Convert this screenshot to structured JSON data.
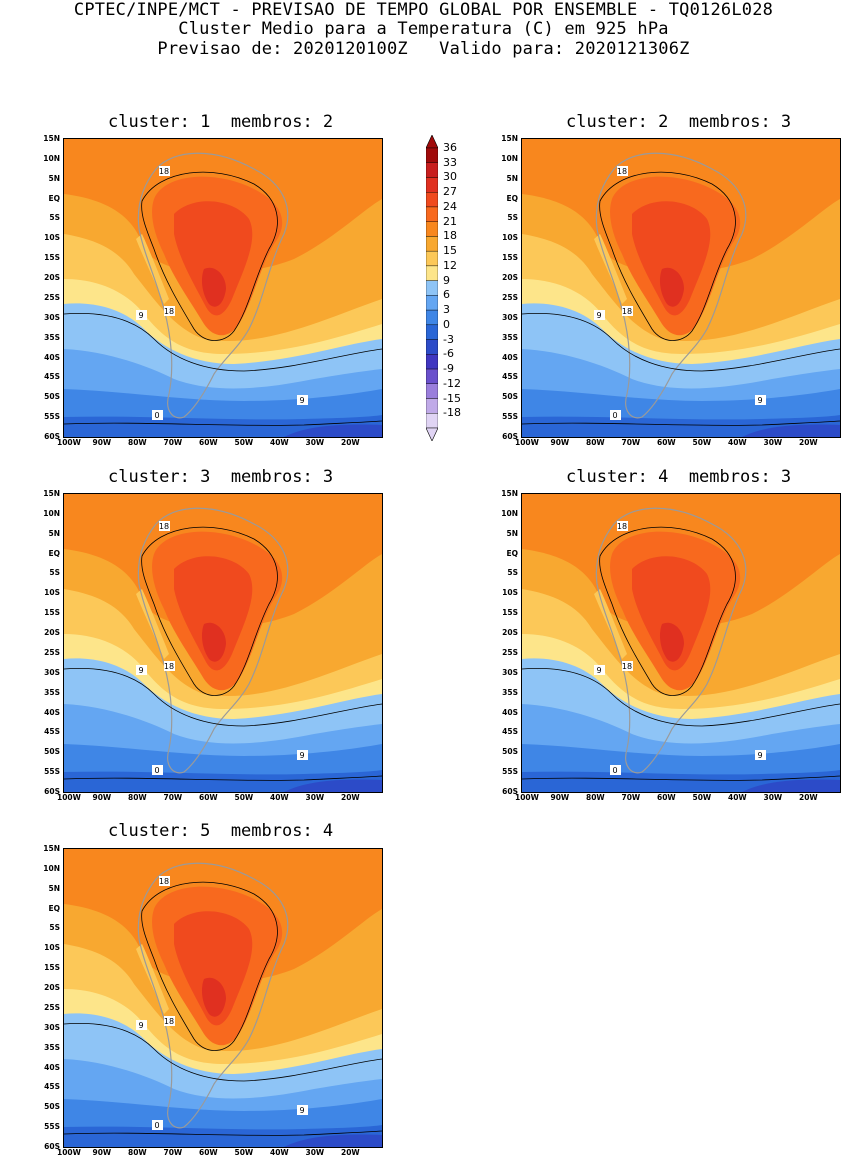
{
  "header": {
    "line1": "CPTEC/INPE/MCT - PREVISAO DE TEMPO GLOBAL POR ENSEMBLE - TQ0126L028",
    "line2": "Cluster Medio para a Temperatura (C) em 925 hPa",
    "line3": "Previsao de: 2020120100Z   Valido para: 2020121306Z"
  },
  "panels": [
    {
      "title": "cluster: 1  membros: 2"
    },
    {
      "title": "cluster: 2  membros: 3"
    },
    {
      "title": "cluster: 3  membros: 3"
    },
    {
      "title": "cluster: 4  membros: 3"
    },
    {
      "title": "cluster: 5  membros: 4"
    }
  ],
  "lat_labels": [
    "15N",
    "10N",
    "5N",
    "EQ",
    "5S",
    "10S",
    "15S",
    "20S",
    "25S",
    "30S",
    "35S",
    "40S",
    "45S",
    "50S",
    "55S",
    "60S"
  ],
  "lon_labels": [
    "100W",
    "90W",
    "80W",
    "70W",
    "60W",
    "50W",
    "40W",
    "30W",
    "20W"
  ],
  "colorbar": {
    "labels": [
      "36",
      "33",
      "30",
      "27",
      "24",
      "21",
      "18",
      "15",
      "12",
      "9",
      "6",
      "3",
      "0",
      "-3",
      "-6",
      "-9",
      "-12",
      "-15",
      "-18"
    ],
    "colors": [
      "#a00a0a",
      "#c81e1e",
      "#e03020",
      "#f04a1e",
      "#f8691e",
      "#f8871e",
      "#f8a830",
      "#fcc858",
      "#fde58a",
      "#8ec4f6",
      "#64a6f2",
      "#3f86e6",
      "#2a66d6",
      "#2c4bc8",
      "#4036c0",
      "#6a50cc",
      "#9a7edc",
      "#c0aae8",
      "#e0d4f4"
    ]
  },
  "contour_labels": {
    "c18": "18",
    "c9": "9",
    "c0": "0"
  }
}
